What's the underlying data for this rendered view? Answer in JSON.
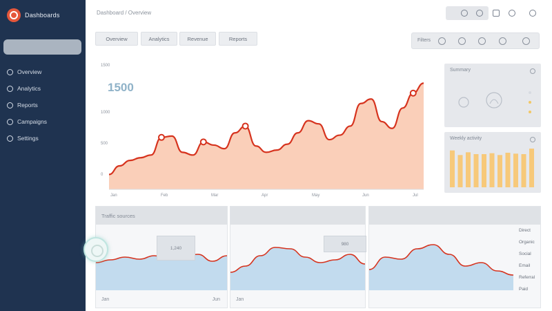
{
  "app": {
    "name": "Dashboards",
    "breadcrumb": "Dashboard / Overview"
  },
  "sidebar": {
    "items": [
      {
        "label": "Overview",
        "icon": "home-icon"
      },
      {
        "label": "Analytics",
        "icon": "chart-icon"
      },
      {
        "label": "Reports",
        "icon": "report-icon"
      },
      {
        "label": "Campaigns",
        "icon": "target-icon"
      },
      {
        "label": "Settings",
        "icon": "gear-icon"
      }
    ]
  },
  "tabs": [
    "Overview",
    "Analytics",
    "Revenue",
    "Reports"
  ],
  "toolbar": {
    "label": "Filters"
  },
  "main_chart": {
    "headline": "1500",
    "y_ticks": [
      "1500",
      "1000",
      "500",
      "0"
    ],
    "x_ticks": [
      "Jan",
      "Feb",
      "Mar",
      "Apr",
      "May",
      "Jun",
      "Jul"
    ]
  },
  "widgets": {
    "summary_title": "Summary",
    "bars_title": "Weekly activity"
  },
  "panels": [
    {
      "title": "Traffic sources",
      "axis_left": "Jan",
      "axis_right": "Jun",
      "tooltip": "1,240"
    },
    {
      "title": "",
      "axis_left": "Jan",
      "axis_right": "",
      "tooltip": "980"
    },
    {
      "title": "",
      "axis_left": "",
      "axis_right": "",
      "tooltip": ""
    }
  ],
  "legend": [
    "Direct",
    "Organic",
    "Social",
    "Email",
    "Referral",
    "Paid"
  ],
  "colors": {
    "sidebar": "#1f3350",
    "accent": "#e5573b",
    "area_fill": "#f9c7ad",
    "line": "#d6331e",
    "blue_area": "#bcd7ec",
    "bar": "#f7c97a"
  },
  "chart_data": [
    {
      "type": "area",
      "x": [
        0,
        1,
        2,
        3,
        4,
        5,
        6,
        7,
        8,
        9,
        10,
        11,
        12,
        13,
        14,
        15,
        16,
        17,
        18,
        19,
        20,
        21,
        22,
        23,
        24,
        25,
        26,
        27,
        28,
        29,
        30
      ],
      "values": [
        330,
        520,
        640,
        700,
        760,
        1150,
        1180,
        820,
        760,
        1050,
        980,
        900,
        1250,
        1400,
        960,
        820,
        870,
        1000,
        1250,
        1520,
        1450,
        1100,
        1200,
        1400,
        1900,
        2000,
        1500,
        1350,
        1800,
        2130,
        2350
      ],
      "highlights": [
        5,
        9,
        13,
        29
      ]
    },
    {
      "type": "bar",
      "values": [
        80,
        70,
        76,
        72,
        72,
        74,
        70,
        75,
        73,
        72,
        84
      ]
    }
  ]
}
